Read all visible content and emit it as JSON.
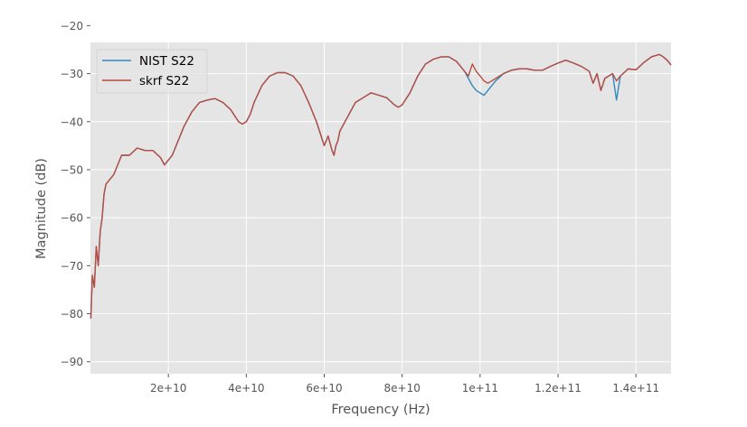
{
  "chart_data": {
    "type": "line",
    "title": "",
    "xlabel": "Frequency (Hz)",
    "ylabel": "Magnitude (dB)",
    "xlim": [
      0,
      149000000000
    ],
    "ylim": [
      -92.5,
      -23.5
    ],
    "x_ticks": [
      {
        "value": 20000000000,
        "label": "2e+10"
      },
      {
        "value": 40000000000,
        "label": "4e+10"
      },
      {
        "value": 60000000000,
        "label": "6e+10"
      },
      {
        "value": 80000000000,
        "label": "8e+10"
      },
      {
        "value": 100000000000,
        "label": "1e+11"
      },
      {
        "value": 120000000000,
        "label": "1.2e+11"
      },
      {
        "value": 140000000000,
        "label": "1.4e+11"
      }
    ],
    "y_ticks": [
      {
        "value": -20,
        "label": "−20"
      },
      {
        "value": -30,
        "label": "−30"
      },
      {
        "value": -40,
        "label": "−40"
      },
      {
        "value": -50,
        "label": "−50"
      },
      {
        "value": -60,
        "label": "−60"
      },
      {
        "value": -70,
        "label": "−70"
      },
      {
        "value": -80,
        "label": "−80"
      },
      {
        "value": -90,
        "label": "−90"
      }
    ],
    "grid": true,
    "legend_position": "top-left",
    "colors": {
      "plot_bg": "#e5e5e5",
      "grid": "#ffffff",
      "text": "#555555"
    },
    "series": [
      {
        "name": "NIST S22",
        "color": "#348abd",
        "x_unit": "GHz",
        "x": [
          0.1,
          0.5,
          1.0,
          1.5,
          2.0,
          2.5,
          3.0,
          3.5,
          4.0,
          5.0,
          6.0,
          8.0,
          10,
          12,
          14,
          16,
          18,
          19,
          20,
          21,
          22,
          24,
          26,
          28,
          30,
          32,
          34,
          36,
          38,
          39,
          40,
          41,
          42,
          44,
          46,
          48,
          50,
          52,
          54,
          56,
          58,
          60,
          61,
          62,
          62.5,
          63,
          63.5,
          64,
          66,
          68,
          70,
          72,
          74,
          76,
          78,
          79,
          80,
          82,
          84,
          86,
          88,
          90,
          92,
          94,
          96,
          97,
          98,
          99,
          100,
          101,
          102,
          103,
          104,
          106,
          108,
          110,
          112,
          114,
          116,
          118,
          120,
          122,
          124,
          126,
          128,
          129,
          130,
          131,
          132,
          133,
          134,
          135,
          136,
          138,
          140,
          142,
          144,
          146,
          147,
          148,
          149
        ],
        "y": [
          -81,
          -72,
          -74.5,
          -66,
          -70,
          -63,
          -60,
          -55,
          -53,
          -52,
          -51,
          -47,
          -47,
          -45.5,
          -46,
          -46,
          -47.5,
          -49,
          -48,
          -47,
          -45,
          -41,
          -38,
          -36,
          -35.5,
          -35.2,
          -36,
          -37.5,
          -40,
          -40.5,
          -40,
          -38.5,
          -36,
          -32.5,
          -30.5,
          -29.8,
          -29.8,
          -30.5,
          -32.5,
          -36,
          -40,
          -45,
          -43,
          -46,
          -47,
          -45,
          -44,
          -42,
          -39,
          -36,
          -35,
          -34,
          -34.5,
          -35,
          -36.5,
          -37,
          -36.5,
          -34,
          -30.5,
          -28,
          -27,
          -26.5,
          -26.5,
          -27.5,
          -29.5,
          -31,
          -32.5,
          -33.5,
          -34,
          -34.5,
          -33.5,
          -32.5,
          -31.5,
          -30,
          -29.3,
          -29,
          -29,
          -29.3,
          -29.3,
          -28.5,
          -27.8,
          -27.2,
          -27.8,
          -28.5,
          -29.5,
          -32,
          -30,
          -33.5,
          -31,
          -30.5,
          -30,
          -35.5,
          -30.5,
          -29,
          -29.2,
          -27.7,
          -26.5,
          -26,
          -26.5,
          -27.2,
          -28.2
        ]
      },
      {
        "name": "skrf S22",
        "color": "#b94b40",
        "x_unit": "GHz",
        "x": [
          0.1,
          0.5,
          1.0,
          1.5,
          2.0,
          2.5,
          3.0,
          3.5,
          4.0,
          5.0,
          6.0,
          8.0,
          10,
          12,
          14,
          16,
          18,
          19,
          20,
          21,
          22,
          24,
          26,
          28,
          30,
          32,
          34,
          36,
          38,
          39,
          40,
          41,
          42,
          44,
          46,
          48,
          50,
          52,
          54,
          56,
          58,
          60,
          61,
          62,
          62.5,
          63,
          63.5,
          64,
          66,
          68,
          70,
          72,
          74,
          76,
          78,
          79,
          80,
          82,
          84,
          86,
          88,
          90,
          92,
          94,
          96,
          97,
          98,
          99,
          100,
          101,
          102,
          103,
          104,
          106,
          108,
          110,
          112,
          114,
          116,
          118,
          120,
          122,
          124,
          126,
          128,
          129,
          130,
          131,
          132,
          133,
          134,
          135,
          136,
          138,
          140,
          142,
          144,
          146,
          147,
          148,
          149
        ],
        "y": [
          -81,
          -72,
          -74.5,
          -66,
          -70,
          -63,
          -60,
          -55,
          -53,
          -52,
          -51,
          -47,
          -47,
          -45.5,
          -46,
          -46,
          -47.5,
          -49,
          -48,
          -47,
          -45,
          -41,
          -38,
          -36,
          -35.5,
          -35.2,
          -36,
          -37.5,
          -40,
          -40.5,
          -40,
          -38.5,
          -36,
          -32.5,
          -30.5,
          -29.8,
          -29.8,
          -30.5,
          -32.5,
          -36,
          -40,
          -45,
          -43,
          -46,
          -47,
          -45,
          -44,
          -42,
          -39,
          -36,
          -35,
          -34,
          -34.5,
          -35,
          -36.5,
          -37,
          -36.5,
          -34,
          -30.5,
          -28,
          -27,
          -26.5,
          -26.5,
          -27.5,
          -29.5,
          -30.5,
          -28,
          -29.5,
          -30.5,
          -31.5,
          -32,
          -31.5,
          -31,
          -30,
          -29.3,
          -29,
          -29,
          -29.3,
          -29.3,
          -28.5,
          -27.8,
          -27.2,
          -27.8,
          -28.5,
          -29.5,
          -32,
          -30,
          -33.5,
          -31,
          -30.5,
          -30,
          -31.5,
          -30.5,
          -29,
          -29.2,
          -27.7,
          -26.5,
          -26,
          -26.5,
          -27.2,
          -28.2
        ]
      }
    ]
  }
}
